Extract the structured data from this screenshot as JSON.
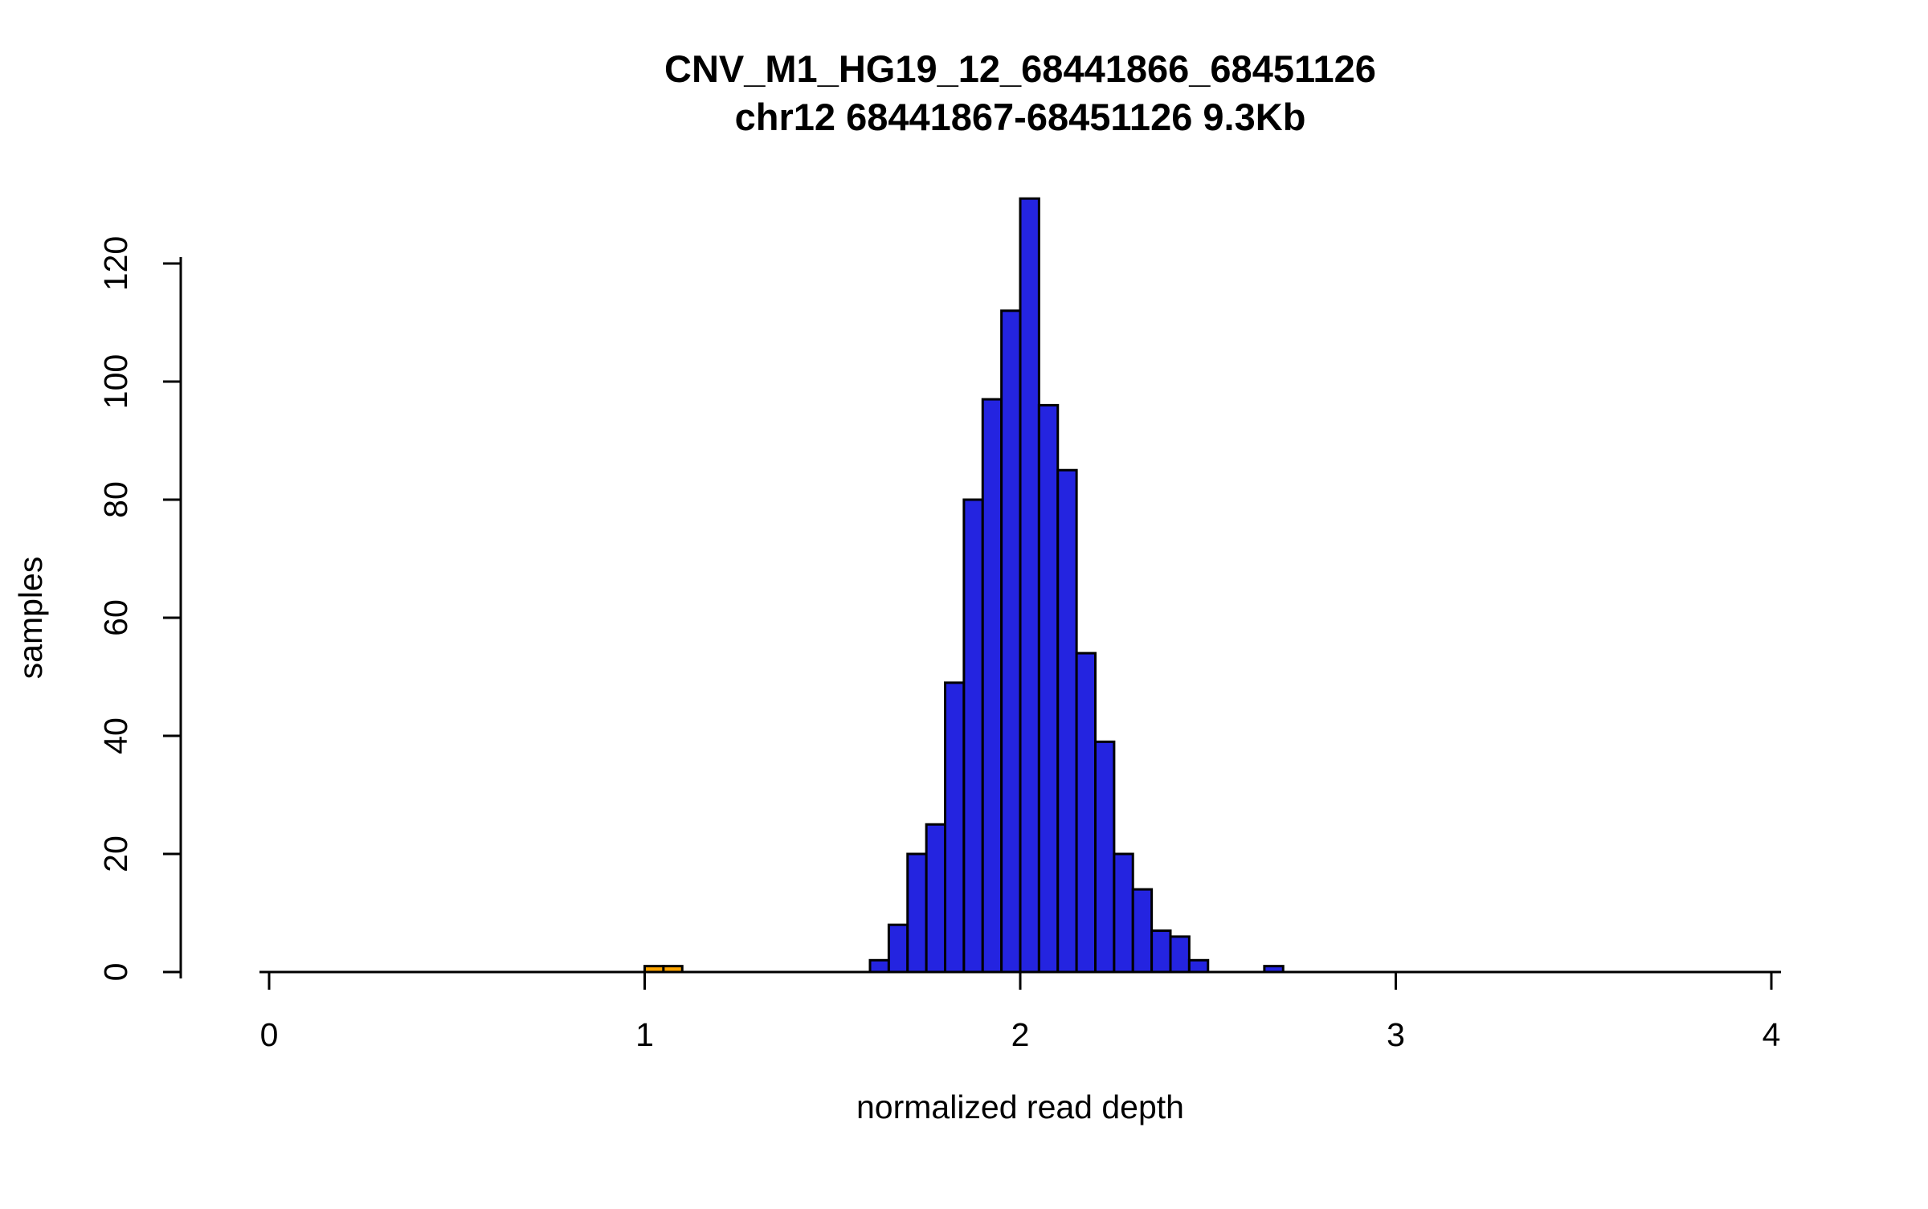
{
  "figure": {
    "title": "CNV_M1_HG19_12_68441866_68451126",
    "subtitle": "chr12 68441867-68451126 9.3Kb",
    "xlabel": "normalized read depth",
    "ylabel": "samples"
  },
  "colors": {
    "bar_blue": "#2424E0",
    "bar_orange": "#FFA500",
    "axis": "#000000",
    "background": "#FFFFFF"
  },
  "chart_data": {
    "type": "bar",
    "subtype": "histogram",
    "title": "CNV_M1_HG19_12_68441866_68451126",
    "subtitle": "chr12 68441867-68451126 9.3Kb",
    "xlabel": "normalized read depth",
    "ylabel": "samples",
    "xlim": [
      0,
      4
    ],
    "ylim": [
      0,
      120
    ],
    "x_ticks": [
      0,
      1,
      2,
      3,
      4
    ],
    "y_ticks": [
      0,
      20,
      40,
      60,
      80,
      100,
      120
    ],
    "grid": false,
    "legend": "none",
    "bin_width": 0.05,
    "bins": [
      {
        "x0": 1.0,
        "count": 1,
        "color": "#FFA500"
      },
      {
        "x0": 1.05,
        "count": 1,
        "color": "#FFA500"
      },
      {
        "x0": 1.6,
        "count": 2,
        "color": "#2424E0"
      },
      {
        "x0": 1.65,
        "count": 8,
        "color": "#2424E0"
      },
      {
        "x0": 1.7,
        "count": 20,
        "color": "#2424E0"
      },
      {
        "x0": 1.75,
        "count": 25,
        "color": "#2424E0"
      },
      {
        "x0": 1.8,
        "count": 49,
        "color": "#2424E0"
      },
      {
        "x0": 1.85,
        "count": 80,
        "color": "#2424E0"
      },
      {
        "x0": 1.9,
        "count": 97,
        "color": "#2424E0"
      },
      {
        "x0": 1.95,
        "count": 112,
        "color": "#2424E0"
      },
      {
        "x0": 2.0,
        "count": 131,
        "color": "#2424E0"
      },
      {
        "x0": 2.05,
        "count": 96,
        "color": "#2424E0"
      },
      {
        "x0": 2.1,
        "count": 85,
        "color": "#2424E0"
      },
      {
        "x0": 2.15,
        "count": 54,
        "color": "#2424E0"
      },
      {
        "x0": 2.2,
        "count": 39,
        "color": "#2424E0"
      },
      {
        "x0": 2.25,
        "count": 20,
        "color": "#2424E0"
      },
      {
        "x0": 2.3,
        "count": 14,
        "color": "#2424E0"
      },
      {
        "x0": 2.35,
        "count": 7,
        "color": "#2424E0"
      },
      {
        "x0": 2.4,
        "count": 6,
        "color": "#2424E0"
      },
      {
        "x0": 2.45,
        "count": 2,
        "color": "#2424E0"
      },
      {
        "x0": 2.65,
        "count": 1,
        "color": "#2424E0"
      }
    ]
  }
}
